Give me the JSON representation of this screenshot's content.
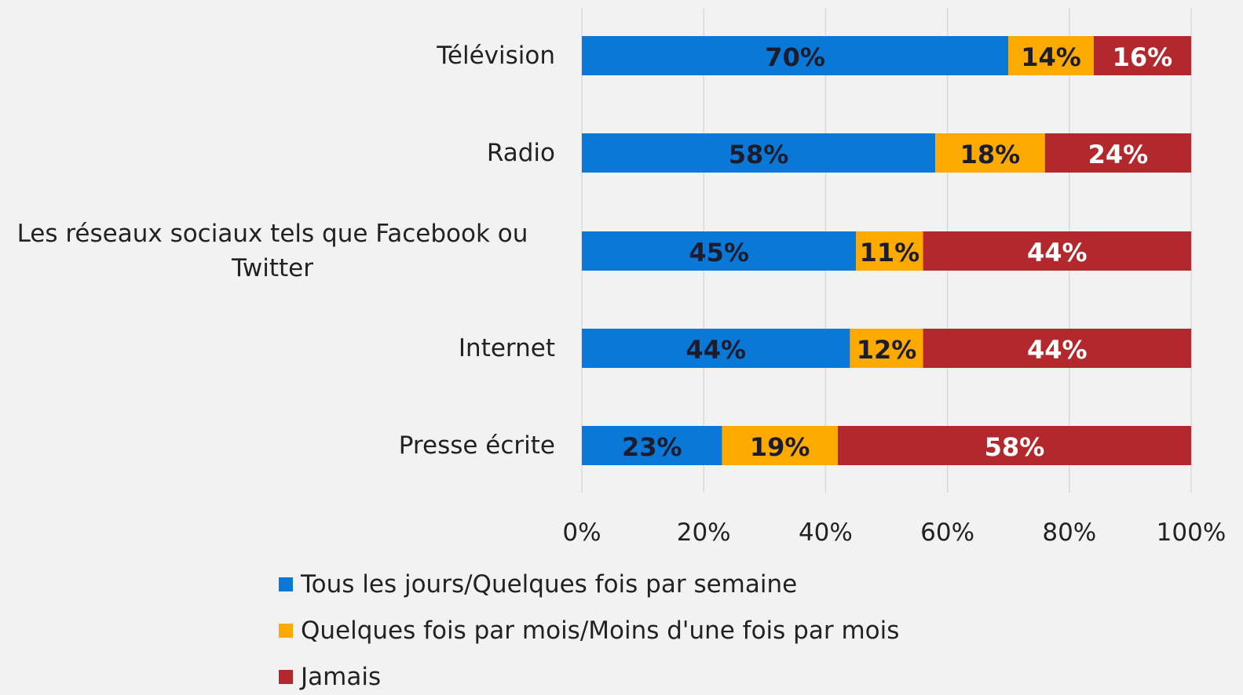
{
  "chart_data": {
    "type": "stacked-barh",
    "categories": [
      "Télévision",
      "Radio",
      "Les réseaux sociaux tels que Facebook ou Twitter",
      "Internet",
      "Presse écrite"
    ],
    "series": [
      {
        "name": "Tous les jours/Quelques fois par semaine",
        "color": "#0a78d7",
        "label_color": "#1c1c2c",
        "values": [
          70,
          58,
          45,
          44,
          23
        ],
        "value_labels": [
          "70%",
          "58%",
          "45%",
          "44%",
          "23%"
        ]
      },
      {
        "name": "Quelques fois par mois/Moins d'une fois par mois",
        "color": "#fdaa00",
        "label_color": "#1c1c2c",
        "values": [
          14,
          18,
          11,
          12,
          19
        ],
        "value_labels": [
          "14%",
          "18%",
          "11%",
          "12%",
          "19%"
        ]
      },
      {
        "name": "Jamais",
        "color": "#b3282d",
        "label_color": "#ffffff",
        "values": [
          16,
          24,
          44,
          44,
          58
        ],
        "value_labels": [
          "16%",
          "24%",
          "44%",
          "44%",
          "58%"
        ]
      }
    ],
    "xlim": [
      0,
      100
    ],
    "xticks": [
      {
        "value": 0,
        "label": "0%"
      },
      {
        "value": 20,
        "label": "20%"
      },
      {
        "value": 40,
        "label": "40%"
      },
      {
        "value": 60,
        "label": "60%"
      },
      {
        "value": 80,
        "label": "80%"
      },
      {
        "value": 100,
        "label": "100%"
      }
    ],
    "grid": true
  }
}
